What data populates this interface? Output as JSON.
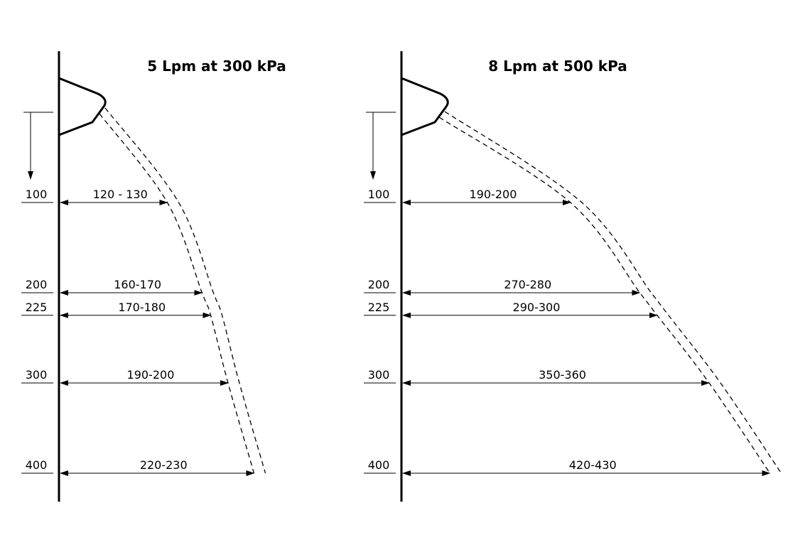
{
  "panels": [
    {
      "title": "5 Lpm at 300 kPa",
      "rows": [
        {
          "depth": "100",
          "width": "120 - 130"
        },
        {
          "depth": "200",
          "width": "160-170"
        },
        {
          "depth": "225",
          "width": "170-180"
        },
        {
          "depth": "300",
          "width": "190-200"
        },
        {
          "depth": "400",
          "width": "220-230"
        }
      ]
    },
    {
      "title": "8 Lpm at 500 kPa",
      "rows": [
        {
          "depth": "100",
          "width": "190-200"
        },
        {
          "depth": "200",
          "width": "270-280"
        },
        {
          "depth": "225",
          "width": "290-300"
        },
        {
          "depth": "300",
          "width": "350-360"
        },
        {
          "depth": "400",
          "width": "420-430"
        }
      ]
    }
  ],
  "colors": {
    "line": "#000000",
    "background": "#ffffff"
  }
}
